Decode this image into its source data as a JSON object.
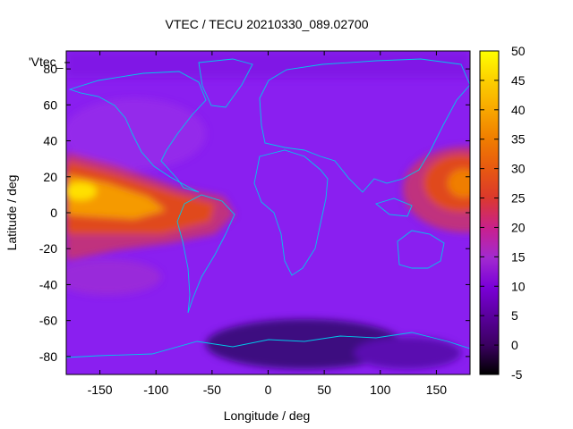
{
  "chart_data": {
    "type": "heatmap",
    "title": "VTEC / TECU 20210330_089.02700",
    "xlabel": "Longitude / deg",
    "ylabel": "Latitude / deg",
    "legend_key": "'Vtec_",
    "xlim": [
      -180,
      180
    ],
    "ylim": [
      -90,
      90
    ],
    "x_ticks": [
      -150,
      -100,
      -50,
      0,
      50,
      100,
      150
    ],
    "y_ticks": [
      80,
      60,
      40,
      20,
      0,
      -20,
      -40,
      -60,
      -80
    ],
    "colorbar": {
      "range": [
        -5,
        50
      ],
      "ticks": [
        50,
        45,
        40,
        35,
        30,
        25,
        20,
        15,
        10,
        5,
        0,
        -5
      ]
    },
    "vtec_regions": [
      {
        "region": "equatorial anomaly, Pacific (lon -180..-60, lat 0..25)",
        "peak_tecu": 45
      },
      {
        "region": "equatorial anomaly, west Pacific (lon 140..180, lat 0..25)",
        "peak_tecu": 33
      },
      {
        "region": "mid/high latitude background",
        "tecu": 10
      },
      {
        "region": "southern high latitudes (lon -40..80, lat -70..-80)",
        "tecu": 2
      }
    ]
  }
}
